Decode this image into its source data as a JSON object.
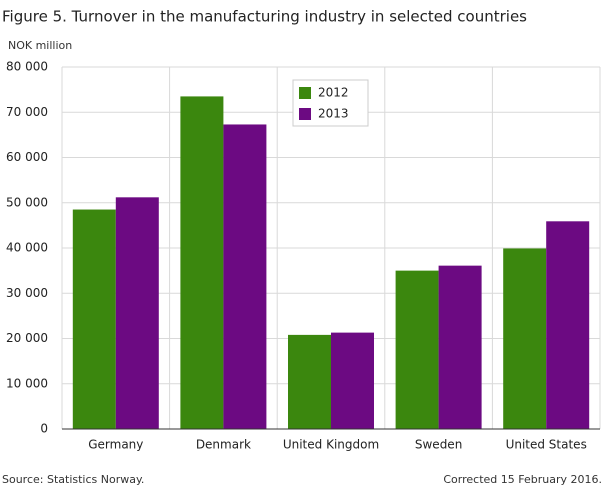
{
  "chart_data": {
    "type": "bar",
    "title": "Figure 5. Turnover in the manufacturing industry in selected countries",
    "y_label": "NOK million",
    "categories": [
      "Germany",
      "Denmark",
      "United Kingdom",
      "Sweden",
      "United States"
    ],
    "series": [
      {
        "name": "2012",
        "color": "#3b870e",
        "values": [
          48500,
          73500,
          20800,
          35000,
          39900
        ]
      },
      {
        "name": "2013",
        "color": "#6c0a82",
        "values": [
          51200,
          67300,
          21300,
          36100,
          45900
        ]
      }
    ],
    "ylim": [
      0,
      80000
    ],
    "yticks": [
      0,
      {
        "value": 10000,
        "label": "10 000"
      },
      {
        "value": 20000,
        "label": "20 000"
      },
      {
        "value": 30000,
        "label": "30 000"
      },
      {
        "value": 40000,
        "label": "40 000"
      },
      {
        "value": 50000,
        "label": "50 000"
      },
      {
        "value": 60000,
        "label": "60 000"
      },
      {
        "value": 70000,
        "label": "70 000"
      },
      {
        "value": 80000,
        "label": "80 000"
      }
    ],
    "grid": true,
    "source": "Source: Statistics Norway.",
    "note": "Corrected 15 February 2016."
  }
}
